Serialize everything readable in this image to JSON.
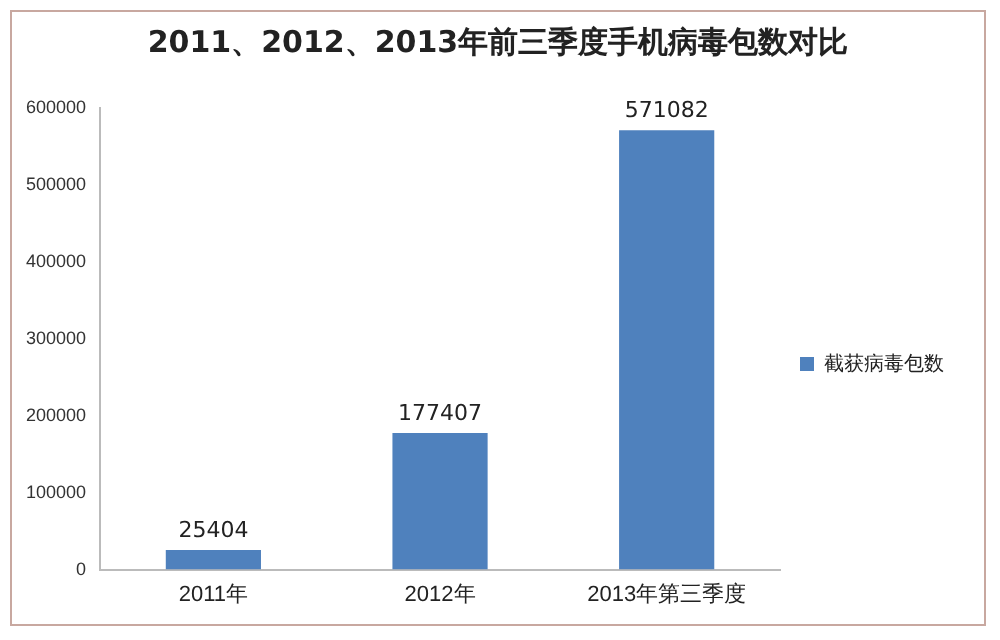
{
  "chart_data": {
    "type": "bar",
    "title": "2011、2012、2013年前三季度手机病毒包数对比",
    "categories": [
      "2011年",
      "2012年",
      "2013年第三季度"
    ],
    "series": [
      {
        "name": "截获病毒包数",
        "color": "#4f81bd",
        "values": [
          25404,
          177407,
          571082
        ]
      }
    ],
    "ylim": [
      0,
      600000
    ],
    "yticks": [
      0,
      100000,
      200000,
      300000,
      400000,
      500000,
      600000
    ],
    "grid": false,
    "legend": "right",
    "data_labels": true
  }
}
